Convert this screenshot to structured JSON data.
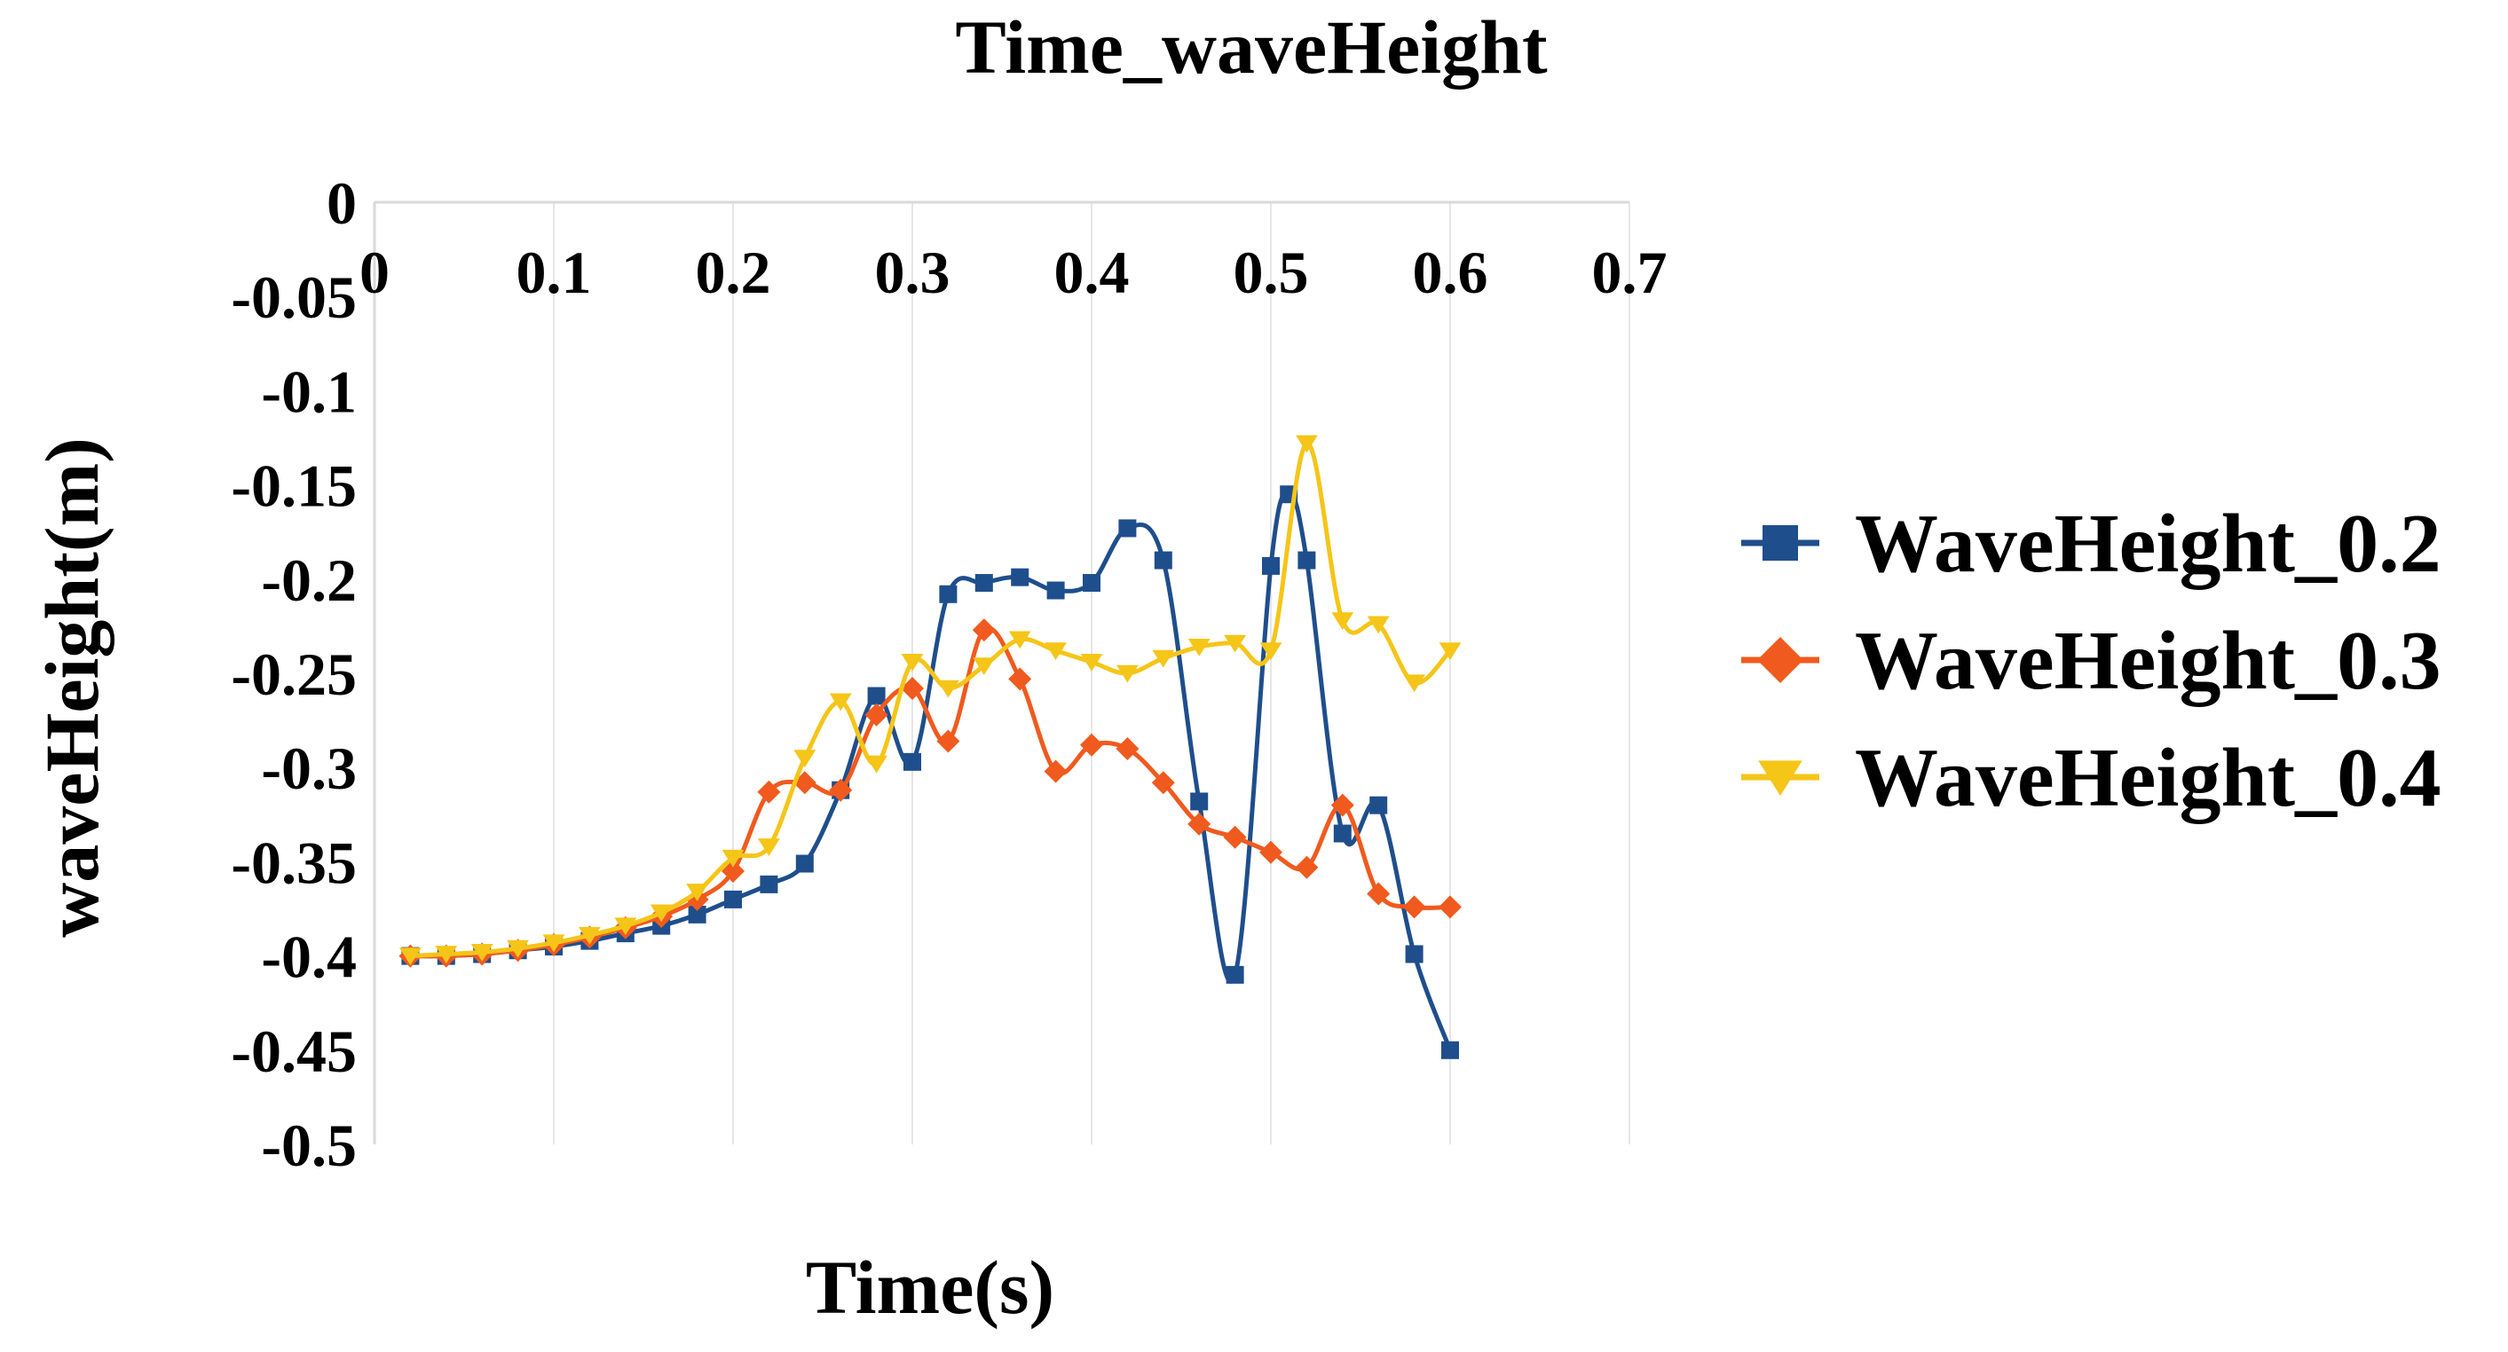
{
  "chart_data": {
    "type": "line",
    "title": "Time_waveHeight",
    "xlabel": "Time(s)",
    "ylabel": "waveHeight(m)",
    "xlim": [
      0,
      0.7
    ],
    "ylim": [
      -0.5,
      0
    ],
    "x_ticks": [
      0,
      0.1,
      0.2,
      0.3,
      0.4,
      0.5,
      0.6,
      0.7
    ],
    "x_tick_labels": [
      "0",
      "0.1",
      "0.2",
      "0.3",
      "0.4",
      "0.5",
      "0.6",
      "0.7"
    ],
    "y_ticks": [
      0,
      -0.05,
      -0.1,
      -0.15,
      -0.2,
      -0.25,
      -0.3,
      -0.35,
      -0.4,
      -0.45,
      -0.5
    ],
    "y_tick_labels": [
      "0",
      "-0.05",
      "-0.1",
      "-0.15",
      "-0.2",
      "-0.25",
      "-0.3",
      "-0.35",
      "-0.4",
      "-0.45",
      "-0.5"
    ],
    "x_axis_position": "top",
    "grid": "vertical",
    "legend_position": "right",
    "series": [
      {
        "name": "WaveHeight_0.2",
        "color": "#1f4e8c",
        "marker": "square",
        "points": [
          [
            0.02,
            -0.4
          ],
          [
            0.04,
            -0.4
          ],
          [
            0.06,
            -0.399
          ],
          [
            0.08,
            -0.397
          ],
          [
            0.1,
            -0.395
          ],
          [
            0.12,
            -0.392
          ],
          [
            0.14,
            -0.388
          ],
          [
            0.16,
            -0.384
          ],
          [
            0.18,
            -0.378
          ],
          [
            0.2,
            -0.37
          ],
          [
            0.22,
            -0.362
          ],
          [
            0.24,
            -0.351
          ],
          [
            0.26,
            -0.312
          ],
          [
            0.28,
            -0.262
          ],
          [
            0.3,
            -0.297
          ],
          [
            0.32,
            -0.208
          ],
          [
            0.34,
            -0.202
          ],
          [
            0.36,
            -0.199
          ],
          [
            0.38,
            -0.206
          ],
          [
            0.4,
            -0.202
          ],
          [
            0.42,
            -0.173
          ],
          [
            0.44,
            -0.19
          ],
          [
            0.46,
            -0.318
          ],
          [
            0.48,
            -0.41
          ],
          [
            0.5,
            -0.193
          ],
          [
            0.51,
            -0.155
          ],
          [
            0.52,
            -0.19
          ],
          [
            0.54,
            -0.335
          ],
          [
            0.56,
            -0.32
          ],
          [
            0.58,
            -0.399
          ],
          [
            0.6,
            -0.45
          ]
        ]
      },
      {
        "name": "WaveHeight_0.3",
        "color": "#f05a1e",
        "marker": "diamond",
        "points": [
          [
            0.02,
            -0.4
          ],
          [
            0.04,
            -0.4
          ],
          [
            0.06,
            -0.399
          ],
          [
            0.08,
            -0.397
          ],
          [
            0.1,
            -0.394
          ],
          [
            0.12,
            -0.39
          ],
          [
            0.14,
            -0.385
          ],
          [
            0.16,
            -0.379
          ],
          [
            0.18,
            -0.37
          ],
          [
            0.2,
            -0.355
          ],
          [
            0.22,
            -0.313
          ],
          [
            0.24,
            -0.308
          ],
          [
            0.26,
            -0.312
          ],
          [
            0.28,
            -0.272
          ],
          [
            0.3,
            -0.258
          ],
          [
            0.32,
            -0.286
          ],
          [
            0.34,
            -0.227
          ],
          [
            0.36,
            -0.253
          ],
          [
            0.38,
            -0.302
          ],
          [
            0.4,
            -0.288
          ],
          [
            0.42,
            -0.29
          ],
          [
            0.44,
            -0.308
          ],
          [
            0.46,
            -0.33
          ],
          [
            0.48,
            -0.337
          ],
          [
            0.5,
            -0.345
          ],
          [
            0.52,
            -0.353
          ],
          [
            0.54,
            -0.32
          ],
          [
            0.56,
            -0.367
          ],
          [
            0.58,
            -0.374
          ],
          [
            0.6,
            -0.374
          ]
        ]
      },
      {
        "name": "WaveHeight_0.4",
        "color": "#f5c518",
        "marker": "triangle-down",
        "points": [
          [
            0.02,
            -0.4
          ],
          [
            0.04,
            -0.399
          ],
          [
            0.06,
            -0.398
          ],
          [
            0.08,
            -0.396
          ],
          [
            0.1,
            -0.393
          ],
          [
            0.12,
            -0.389
          ],
          [
            0.14,
            -0.384
          ],
          [
            0.16,
            -0.377
          ],
          [
            0.18,
            -0.366
          ],
          [
            0.2,
            -0.348
          ],
          [
            0.22,
            -0.342
          ],
          [
            0.24,
            -0.295
          ],
          [
            0.26,
            -0.265
          ],
          [
            0.28,
            -0.298
          ],
          [
            0.3,
            -0.244
          ],
          [
            0.32,
            -0.258
          ],
          [
            0.34,
            -0.246
          ],
          [
            0.36,
            -0.232
          ],
          [
            0.38,
            -0.238
          ],
          [
            0.4,
            -0.244
          ],
          [
            0.42,
            -0.25
          ],
          [
            0.44,
            -0.242
          ],
          [
            0.46,
            -0.236
          ],
          [
            0.48,
            -0.234
          ],
          [
            0.5,
            -0.238
          ],
          [
            0.52,
            -0.128
          ],
          [
            0.54,
            -0.222
          ],
          [
            0.56,
            -0.224
          ],
          [
            0.58,
            -0.255
          ],
          [
            0.6,
            -0.238
          ]
        ]
      }
    ]
  }
}
